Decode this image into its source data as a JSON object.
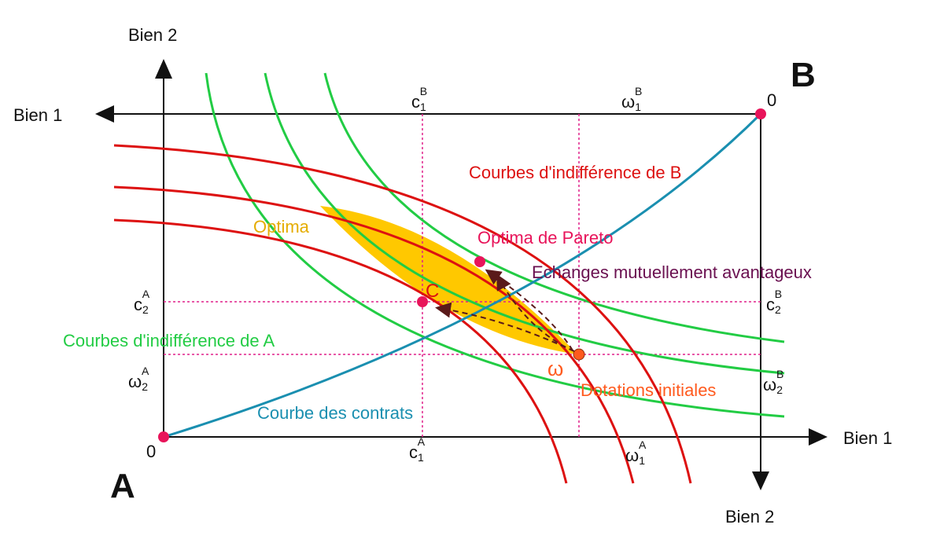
{
  "corners": {
    "a": "A",
    "b": "B"
  },
  "axes": {
    "a_x": "Bien 1",
    "a_y": "Bien 2",
    "b_x": "Bien 1",
    "b_y": "Bien 2",
    "origin_a": "0",
    "origin_b": "0"
  },
  "ticks": {
    "c1A": {
      "main": "c",
      "sub": "1",
      "sup": "A"
    },
    "w1A": {
      "main": "ω",
      "sub": "1",
      "sup": "A"
    },
    "c1B": {
      "main": "c",
      "sub": "1",
      "sup": "B"
    },
    "w1B": {
      "main": "ω",
      "sub": "1",
      "sup": "B"
    },
    "c2A": {
      "main": "c",
      "sub": "2",
      "sup": "A"
    },
    "w2A": {
      "main": "ω",
      "sub": "2",
      "sup": "A"
    },
    "c2B": {
      "main": "c",
      "sub": "2",
      "sup": "B"
    },
    "w2B": {
      "main": "ω",
      "sub": "2",
      "sup": "B"
    }
  },
  "labels": {
    "optima": "Optima",
    "pareto": "Optima de Pareto",
    "echanges": "Echanges mutuellement avantageux",
    "ci_a": "Courbes d'indifférence de A",
    "ci_b": "Courbes d'indifférence de B",
    "contrats": "Courbe des contrats",
    "dotations": "Dotations initiales",
    "point_c": "C",
    "point_omega": "ω"
  },
  "colors": {
    "indiff_a": "#22cc44",
    "indiff_b": "#dd1111",
    "contract": "#1a8fb0",
    "lens": "#ffc800",
    "pareto_point": "#e8145a",
    "omega_point": "#ff5a1e",
    "arrow": "#5a1a1a",
    "guide": "#e0208a",
    "echanges_text": "#6a1050",
    "optima_text": "#e5ac00",
    "dotations_text": "#ff5a1e"
  }
}
